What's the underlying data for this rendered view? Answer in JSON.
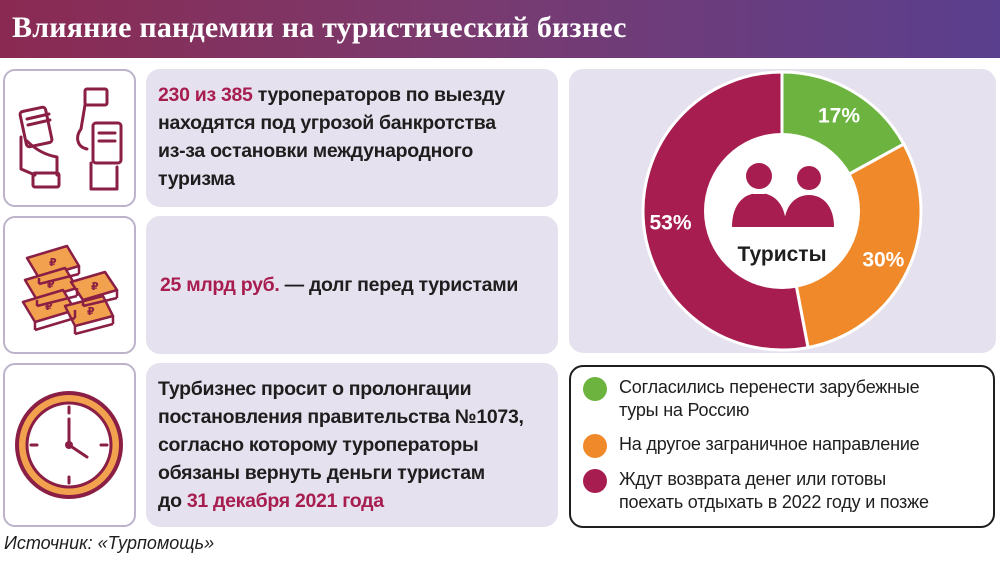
{
  "header": {
    "title": "Влияние пандемии на туристический бизнес"
  },
  "facts": [
    {
      "icon": "card-payment-hands-icon",
      "accent": "230 из 385",
      "lines": [
        " туроператоров по выезду",
        "находятся под угрозой банкротства",
        "из-за остановки международного",
        "туризма"
      ]
    },
    {
      "icon": "money-stacks-icon",
      "accent": "25 млрд руб.",
      "rest": " — долг перед туристами"
    },
    {
      "icon": "clock-icon",
      "lines": [
        "Турбизнес просит о пролонгации",
        "постановления правительства №1073,",
        "согласно которому туроператоры",
        "обязаны вернуть деньги туристам"
      ],
      "last_prefix": "до ",
      "accent": "31 декабря 2021 года"
    }
  ],
  "chart_data": {
    "type": "pie",
    "variant": "donut",
    "center_label": "Туристы",
    "center_icon": "tourists-people-icon",
    "slices": [
      {
        "label": "17%",
        "value": 17,
        "color": "#6cb33f"
      },
      {
        "label": "30%",
        "value": 30,
        "color": "#f0892a"
      },
      {
        "label": "53%",
        "value": 53,
        "color": "#a71d4f"
      }
    ],
    "legend": [
      {
        "lines": [
          "Согласились перенести зарубежные",
          "туры на Россию"
        ],
        "color": "#6cb33f"
      },
      {
        "lines": [
          "На другое заграничное направление"
        ],
        "color": "#f0892a"
      },
      {
        "lines": [
          "Ждут возврата денег или готовы",
          "поехать отдыхать в 2022 году и позже"
        ],
        "color": "#a71d4f"
      }
    ]
  },
  "source": "Источник: «Турпомощь»"
}
